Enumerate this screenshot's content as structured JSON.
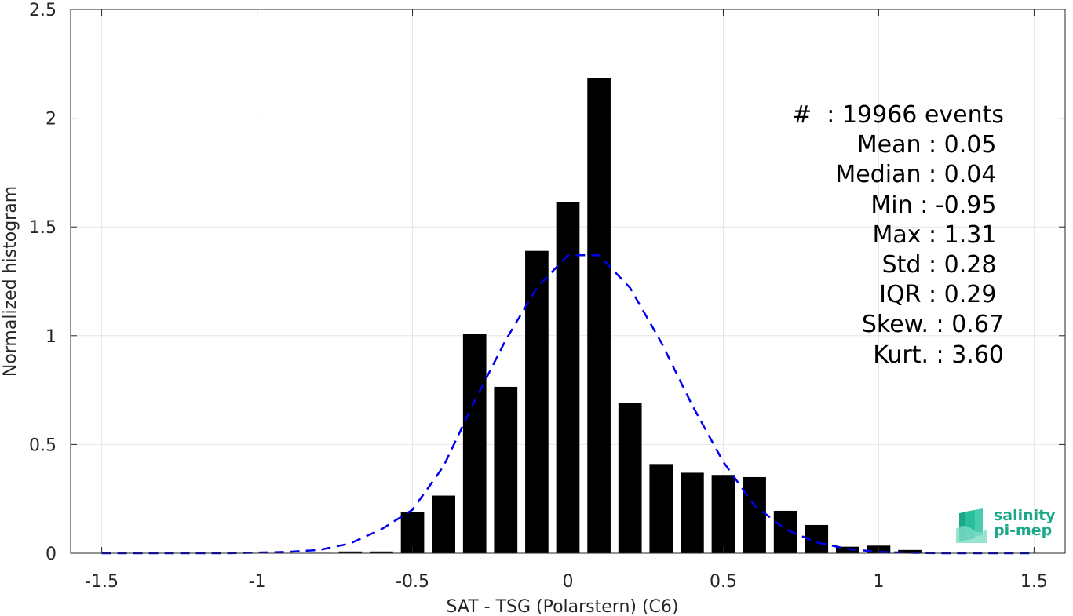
{
  "chart_data": {
    "type": "bar",
    "xlabel": "SAT - TSG (Polarstern) (C6)",
    "ylabel": "Normalized histogram",
    "xlim": [
      -1.6,
      1.6
    ],
    "ylim": [
      0,
      2.5
    ],
    "x_ticks": [
      -1.5,
      -1,
      -0.5,
      0,
      0.5,
      1,
      1.5
    ],
    "x_tick_labels": [
      "-1.5",
      "-1",
      "-0.5",
      "0",
      "0.5",
      "1",
      "1.5"
    ],
    "y_ticks": [
      0,
      0.5,
      1,
      1.5,
      2,
      2.5
    ],
    "y_tick_labels": [
      "0",
      "0.5",
      "1",
      "1.5",
      "2",
      "2.5"
    ],
    "grid": true,
    "bar_color": "#000000",
    "bar_width": 0.075,
    "bars": {
      "x": [
        -0.8,
        -0.7,
        -0.6,
        -0.5,
        -0.4,
        -0.3,
        -0.2,
        -0.1,
        0.0,
        0.1,
        0.2,
        0.3,
        0.4,
        0.5,
        0.6,
        0.7,
        0.8,
        0.9,
        1.0,
        1.1
      ],
      "values": [
        0.002,
        0.008,
        0.008,
        0.19,
        0.265,
        1.01,
        0.765,
        1.39,
        1.615,
        2.185,
        0.69,
        0.41,
        0.37,
        0.36,
        0.35,
        0.195,
        0.13,
        0.03,
        0.035,
        0.015
      ]
    },
    "fit_curve": {
      "style": "dashed",
      "color": "#0000ee",
      "x": [
        -1.5,
        -1.4,
        -1.3,
        -1.2,
        -1.1,
        -1.0,
        -0.9,
        -0.8,
        -0.7,
        -0.6,
        -0.5,
        -0.4,
        -0.3,
        -0.2,
        -0.1,
        0.0,
        0.1,
        0.2,
        0.3,
        0.4,
        0.5,
        0.6,
        0.7,
        0.8,
        0.9,
        1.0,
        1.1,
        1.2,
        1.3,
        1.4,
        1.5
      ],
      "y": [
        0.0,
        0.0,
        0.0,
        0.0,
        0.0,
        0.003,
        0.006,
        0.015,
        0.045,
        0.11,
        0.2,
        0.4,
        0.7,
        0.98,
        1.22,
        1.37,
        1.37,
        1.22,
        0.97,
        0.68,
        0.42,
        0.22,
        0.11,
        0.05,
        0.02,
        0.006,
        0.002,
        0.0,
        0.0,
        0.0,
        0.0
      ]
    },
    "stats_lines": [
      "#  : 19966 events",
      "Mean : 0.05 ",
      "Median : 0.04 ",
      "Min : -0.95 ",
      "Max : 1.31 ",
      "Std : 0.28 ",
      "IQR : 0.29 ",
      "Skew. : 0.67",
      "Kurt. : 3.60"
    ]
  },
  "logo": {
    "line1": "salinity",
    "line2": "pi-mep",
    "color": "#1aa889"
  }
}
